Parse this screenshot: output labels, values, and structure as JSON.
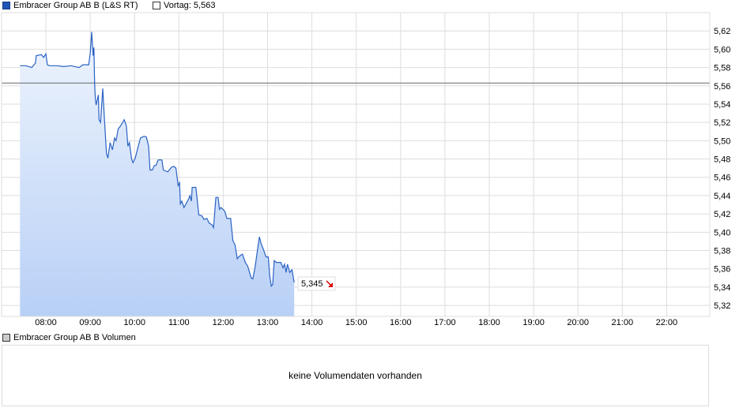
{
  "legend": {
    "series_label": "Embracer Group AB B (L&S RT)",
    "series_color": "#1f55b5",
    "prev_label": "Vortag: 5,563"
  },
  "volume": {
    "label": "Embracer Group AB B Volumen",
    "empty_text": "keine Volumendaten vorhanden"
  },
  "chart_data": {
    "type": "area",
    "xlabel": "",
    "ylabel": "",
    "x_ticks": [
      "08:00",
      "09:00",
      "10:00",
      "11:00",
      "12:00",
      "13:00",
      "14:00",
      "15:00",
      "16:00",
      "17:00",
      "18:00",
      "19:00",
      "20:00",
      "21:00",
      "22:00"
    ],
    "y_ticks": [
      "5,32",
      "5,34",
      "5,36",
      "5,38",
      "5,40",
      "5,42",
      "5,44",
      "5,46",
      "5,48",
      "5,50",
      "5,52",
      "5,54",
      "5,56",
      "5,58",
      "5,60",
      "5,62"
    ],
    "ylim": [
      5.308,
      5.64
    ],
    "xlim": [
      "07:25",
      "22:55"
    ],
    "grid": true,
    "previous_close": 5.563,
    "last_value_label": "5,345",
    "last_direction": "down",
    "line_color": "#2a62c4",
    "fill_top_color": "#eef4fd",
    "fill_bottom_color": "#b8d0f6",
    "prev_close_color": "#666666",
    "down_color": "#e00000",
    "series": [
      {
        "points": [
          [
            "07:25",
            5.582
          ],
          [
            "07:33",
            5.582
          ],
          [
            "07:41",
            5.58
          ],
          [
            "07:44",
            5.583
          ],
          [
            "07:46",
            5.585
          ],
          [
            "07:47",
            5.593
          ],
          [
            "07:54",
            5.594
          ],
          [
            "07:57",
            5.591
          ],
          [
            "08:00",
            5.595
          ],
          [
            "08:02",
            5.583
          ],
          [
            "08:05",
            5.582
          ],
          [
            "08:16",
            5.582
          ],
          [
            "08:24",
            5.581
          ],
          [
            "08:34",
            5.582
          ],
          [
            "08:45",
            5.58
          ],
          [
            "08:50",
            5.583
          ],
          [
            "08:58",
            5.583
          ],
          [
            "09:00",
            5.595
          ],
          [
            "09:02",
            5.619
          ],
          [
            "09:04",
            5.593
          ],
          [
            "09:05",
            5.602
          ],
          [
            "09:06",
            5.563
          ],
          [
            "09:07",
            5.546
          ],
          [
            "09:08",
            5.539
          ],
          [
            "09:11",
            5.55
          ],
          [
            "09:12",
            5.523
          ],
          [
            "09:14",
            5.52
          ],
          [
            "09:17",
            5.557
          ],
          [
            "09:19",
            5.527
          ],
          [
            "09:22",
            5.486
          ],
          [
            "09:24",
            5.481
          ],
          [
            "09:27",
            5.498
          ],
          [
            "09:30",
            5.49
          ],
          [
            "09:33",
            5.503
          ],
          [
            "09:35",
            5.5
          ],
          [
            "09:38",
            5.513
          ],
          [
            "09:41",
            5.516
          ],
          [
            "09:44",
            5.52
          ],
          [
            "09:46",
            5.523
          ],
          [
            "09:49",
            5.516
          ],
          [
            "09:51",
            5.494
          ],
          [
            "09:53",
            5.498
          ],
          [
            "09:56",
            5.48
          ],
          [
            "09:58",
            5.476
          ],
          [
            "10:01",
            5.481
          ],
          [
            "10:05",
            5.494
          ],
          [
            "10:08",
            5.503
          ],
          [
            "10:13",
            5.505
          ],
          [
            "10:16",
            5.504
          ],
          [
            "10:19",
            5.494
          ],
          [
            "10:21",
            5.468
          ],
          [
            "10:24",
            5.468
          ],
          [
            "10:27",
            5.473
          ],
          [
            "10:29",
            5.473
          ],
          [
            "10:32",
            5.479
          ],
          [
            "10:37",
            5.479
          ],
          [
            "10:39",
            5.468
          ],
          [
            "10:45",
            5.466
          ],
          [
            "10:50",
            5.471
          ],
          [
            "10:53",
            5.472
          ],
          [
            "10:56",
            5.47
          ],
          [
            "10:59",
            5.451
          ],
          [
            "11:01",
            5.454
          ],
          [
            "11:02",
            5.431
          ],
          [
            "11:04",
            5.434
          ],
          [
            "11:07",
            5.427
          ],
          [
            "11:13",
            5.436
          ],
          [
            "11:15",
            5.44
          ],
          [
            "11:17",
            5.434
          ],
          [
            "11:18",
            5.449
          ],
          [
            "11:23",
            5.449
          ],
          [
            "11:25",
            5.434
          ],
          [
            "11:27",
            5.419
          ],
          [
            "11:31",
            5.418
          ],
          [
            "11:34",
            5.414
          ],
          [
            "11:38",
            5.415
          ],
          [
            "11:41",
            5.41
          ],
          [
            "11:45",
            5.408
          ],
          [
            "11:47",
            5.405
          ],
          [
            "11:50",
            5.438
          ],
          [
            "11:53",
            5.438
          ],
          [
            "11:55",
            5.425
          ],
          [
            "11:57",
            5.427
          ],
          [
            "12:02",
            5.423
          ],
          [
            "12:05",
            5.415
          ],
          [
            "12:10",
            5.415
          ],
          [
            "12:13",
            5.391
          ],
          [
            "12:16",
            5.386
          ],
          [
            "12:19",
            5.371
          ],
          [
            "12:21",
            5.373
          ],
          [
            "12:24",
            5.375
          ],
          [
            "12:26",
            5.376
          ],
          [
            "12:30",
            5.367
          ],
          [
            "12:33",
            5.363
          ],
          [
            "12:38",
            5.35
          ],
          [
            "12:40",
            5.349
          ],
          [
            "12:43",
            5.361
          ],
          [
            "12:47",
            5.384
          ],
          [
            "12:49",
            5.395
          ],
          [
            "12:51",
            5.388
          ],
          [
            "12:54",
            5.382
          ],
          [
            "12:58",
            5.373
          ],
          [
            "13:01",
            5.373
          ],
          [
            "13:03",
            5.352
          ],
          [
            "13:05",
            5.341
          ],
          [
            "13:07",
            5.343
          ],
          [
            "13:09",
            5.369
          ],
          [
            "13:12",
            5.367
          ],
          [
            "13:18",
            5.367
          ],
          [
            "13:21",
            5.361
          ],
          [
            "13:23",
            5.365
          ],
          [
            "13:25",
            5.356
          ],
          [
            "13:27",
            5.365
          ],
          [
            "13:30",
            5.356
          ],
          [
            "13:33",
            5.359
          ],
          [
            "13:36",
            5.345
          ]
        ]
      }
    ]
  }
}
